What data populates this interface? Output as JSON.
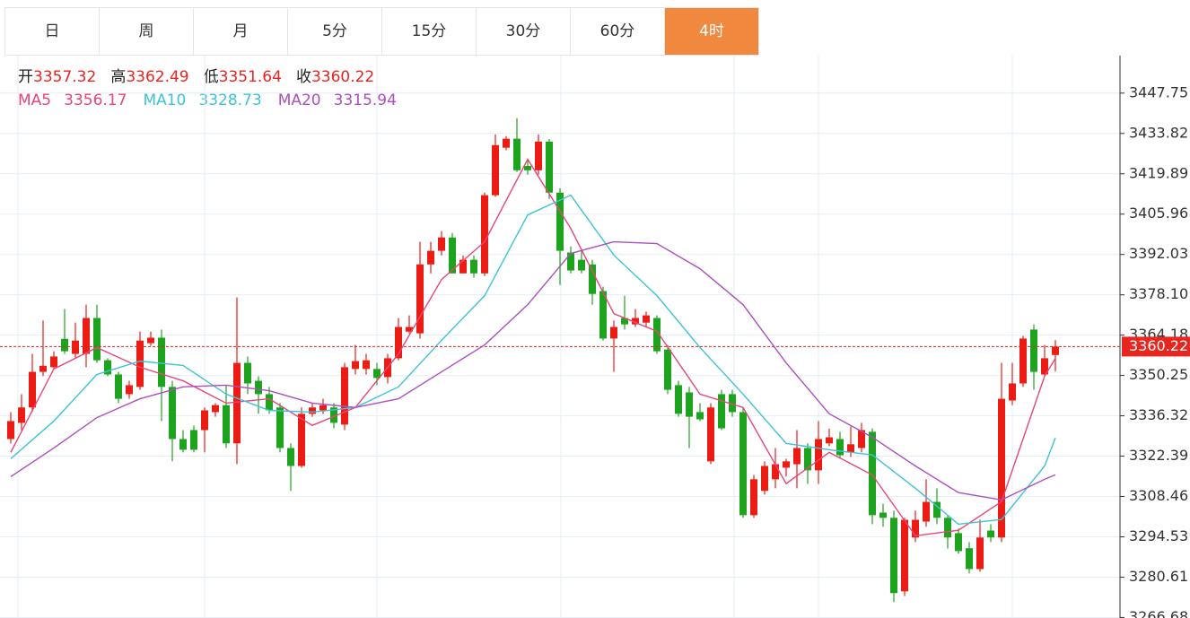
{
  "tabs": {
    "labels": [
      "日",
      "周",
      "月",
      "5分",
      "15分",
      "30分",
      "60分",
      "4时"
    ],
    "active": 7
  },
  "chart_data": {
    "type": "candlestick",
    "ohlc_labels": [
      "开",
      "高",
      "低",
      "收"
    ],
    "ylim": [
      3266.5,
      3460.7
    ],
    "yticks": [
      3447.75,
      3433.82,
      3419.89,
      3405.96,
      3392.03,
      {
        "value": 3378.1,
        "label": "3378.10"
      },
      3364.18,
      3350.25,
      3336.32,
      3322.39,
      3308.46,
      3294.53,
      3280.61,
      3266.68
    ],
    "grid": true,
    "up_color": "#eb1c14",
    "down_color": "#1ea31e",
    "last_price_color": "#e8251f",
    "open": [
      3328.3,
      3333.9,
      3339.2,
      3351.5,
      3353.1,
      3362.9,
      3357.7,
      3357.7,
      3370.1,
      3355.5,
      3350.6,
      3343.8,
      3346.3,
      3361.4,
      3363.3,
      3346.3,
      3328.3,
      3331.4,
      3331.4,
      3337.6,
      3340.0,
      3326.8,
      3354.6,
      3348.4,
      3343.8,
      3339.2,
      3325.2,
      3319.0,
      3337.0,
      3338.2,
      3339.2,
      3333.3,
      3352.5,
      3352.5,
      3352.5,
      3349.7,
      3356.2,
      3365.4,
      3364.8,
      3388.6,
      3393.3,
      3397.9,
      3385.5,
      3390.2,
      3385.5,
      3412.5,
      3428.9,
      3432.0,
      3422.6,
      3421.1,
      3431.0,
      3413.4,
      3392.7,
      3390.2,
      3388.6,
      3379.4,
      3363.0,
      3370.1,
      3367.9,
      3368.5,
      3370.1,
      3359.2,
      3346.9,
      3344.4,
      3337.6,
      3320.6,
      3343.8,
      3343.8,
      3337.6,
      3302.0,
      3310.4,
      3314.4,
      3318.4,
      3319.6,
      3325.2,
      3317.5,
      3326.8,
      3328.3,
      3323.7,
      3325.2,
      3330.8,
      3302.9,
      3301.1,
      3275.7,
      3294.3,
      3299.8,
      3306.6,
      3301.1,
      3295.8,
      3290.6,
      3283.4,
      3296.7,
      3294.3,
      3341.6,
      3347.5,
      3366.1,
      3350.6,
      3357.32
    ],
    "high": [
      3337.6,
      3343.8,
      3357.7,
      3369.2,
      3358.6,
      3373.2,
      3368.5,
      3374.7,
      3374.7,
      3356.2,
      3351.5,
      3348.4,
      3365.4,
      3365.4,
      3366.1,
      3348.4,
      3331.4,
      3333.0,
      3339.2,
      3340.7,
      3346.9,
      3377.2,
      3356.8,
      3350.0,
      3346.3,
      3340.7,
      3326.8,
      3339.2,
      3340.7,
      3342.2,
      3340.7,
      3354.6,
      3360.8,
      3357.7,
      3354.6,
      3357.7,
      3370.1,
      3371.0,
      3396.4,
      3396.4,
      3400.1,
      3399.5,
      3391.7,
      3391.7,
      3413.4,
      3433.5,
      3432.9,
      3439.1,
      3424.9,
      3433.5,
      3431.9,
      3414.9,
      3394.8,
      3393.3,
      3390.2,
      3380.9,
      3369.2,
      3377.8,
      3373.2,
      3372.3,
      3371.0,
      3360.8,
      3348.4,
      3346.3,
      3340.7,
      3340.7,
      3345.3,
      3345.3,
      3339.2,
      3315.9,
      3320.6,
      3325.2,
      3321.5,
      3331.4,
      3326.8,
      3334.5,
      3331.9,
      3330.8,
      3332.6,
      3333.9,
      3332.0,
      3306.0,
      3303.6,
      3301.1,
      3303.6,
      3314.4,
      3311.3,
      3302.0,
      3297.4,
      3292.7,
      3300.4,
      3298.9,
      3354.6,
      3354.6,
      3363.9,
      3367.9,
      3360.8,
      3362.49
    ],
    "low": [
      3326.8,
      3331.4,
      3337.6,
      3350.0,
      3352.5,
      3357.7,
      3356.2,
      3353.1,
      3354.6,
      3350.0,
      3340.7,
      3342.2,
      3345.3,
      3360.5,
      3334.5,
      3320.6,
      3323.7,
      3323.7,
      3323.7,
      3336.0,
      3325.2,
      3319.6,
      3343.8,
      3337.0,
      3337.0,
      3323.7,
      3310.4,
      3318.4,
      3336.0,
      3337.0,
      3332.0,
      3331.4,
      3350.6,
      3350.6,
      3346.9,
      3347.5,
      3355.5,
      3364.8,
      3363.0,
      3385.5,
      3391.7,
      3385.5,
      3385.5,
      3384.0,
      3384.6,
      3411.9,
      3428.0,
      3420.5,
      3419.6,
      3419.6,
      3411.2,
      3381.5,
      3385.5,
      3385.5,
      3374.7,
      3362.3,
      3351.5,
      3366.1,
      3367.0,
      3367.0,
      3357.7,
      3343.8,
      3336.0,
      3325.2,
      3334.5,
      3319.6,
      3331.4,
      3336.0,
      3301.1,
      3301.1,
      3309.1,
      3311.3,
      3315.3,
      3311.3,
      3312.8,
      3312.8,
      3325.8,
      3321.5,
      3322.1,
      3323.7,
      3298.9,
      3298.0,
      3272.0,
      3274.1,
      3292.7,
      3298.0,
      3298.9,
      3290.5,
      3288.7,
      3281.9,
      3282.5,
      3292.7,
      3292.7,
      3340.0,
      3346.3,
      3345.3,
      3350.0,
      3351.64
    ],
    "close": [
      3334.5,
      3339.2,
      3351.5,
      3353.6,
      3356.8,
      3358.6,
      3362.3,
      3370.1,
      3355.5,
      3350.6,
      3342.2,
      3346.9,
      3362.3,
      3363.3,
      3346.3,
      3328.3,
      3324.6,
      3324.6,
      3338.2,
      3340.0,
      3326.8,
      3354.6,
      3347.5,
      3343.8,
      3338.2,
      3325.2,
      3319.0,
      3337.0,
      3339.2,
      3340.0,
      3333.9,
      3353.1,
      3355.2,
      3355.5,
      3349.4,
      3356.2,
      3367.0,
      3367.0,
      3388.6,
      3393.3,
      3397.9,
      3385.5,
      3390.2,
      3385.5,
      3412.5,
      3429.8,
      3432.0,
      3421.1,
      3421.1,
      3431.0,
      3413.4,
      3393.3,
      3386.5,
      3386.5,
      3378.4,
      3363.0,
      3367.0,
      3367.9,
      3370.1,
      3371.0,
      3358.6,
      3345.3,
      3337.0,
      3336.0,
      3335.1,
      3339.2,
      3332.0,
      3337.6,
      3302.0,
      3314.4,
      3319.0,
      3319.6,
      3320.6,
      3325.2,
      3317.5,
      3328.3,
      3328.9,
      3322.7,
      3326.5,
      3331.4,
      3302.0,
      3301.1,
      3275.1,
      3300.4,
      3300.4,
      3306.6,
      3301.1,
      3294.3,
      3289.6,
      3283.4,
      3294.3,
      3294.3,
      3342.2,
      3347.5,
      3363.0,
      3351.5,
      3356.2,
      3360.22
    ],
    "series": [
      {
        "name": "MA5",
        "color": "#e8457a",
        "x": [
          0,
          4,
          8,
          12,
          16,
          20,
          24,
          28,
          32,
          36,
          40,
          44,
          48,
          52,
          56,
          60,
          64,
          68,
          72,
          76,
          80,
          84,
          88,
          92,
          96,
          97
        ],
        "values": [
          3323.7,
          3352.5,
          3359.9,
          3353.1,
          3348.4,
          3340.7,
          3342.2,
          3333.0,
          3339.2,
          3357.7,
          3383.4,
          3396.4,
          3424.9,
          3401.0,
          3371.6,
          3365.5,
          3343.8,
          3339.2,
          3312.9,
          3323.7,
          3315.9,
          3294.9,
          3296.8,
          3306.7,
          3350.0,
          3356.17
        ]
      },
      {
        "name": "MA10",
        "color": "#3cc3d6",
        "x": [
          0,
          4,
          8,
          12,
          16,
          20,
          24,
          28,
          32,
          36,
          40,
          44,
          48,
          52,
          56,
          60,
          64,
          68,
          72,
          76,
          80,
          84,
          88,
          92,
          96,
          97
        ],
        "values": [
          3321.5,
          3334.5,
          3350.6,
          3355.2,
          3353.7,
          3343.8,
          3338.2,
          3337.6,
          3339.2,
          3346.3,
          3362.4,
          3377.8,
          3405.7,
          3412.5,
          3391.8,
          3377.8,
          3359.9,
          3343.8,
          3326.8,
          3324.6,
          3322.8,
          3311.3,
          3298.9,
          3300.5,
          3319.0,
          3328.73
        ]
      },
      {
        "name": "MA20",
        "color": "#ad4fbf",
        "x": [
          0,
          4,
          8,
          12,
          16,
          20,
          24,
          28,
          32,
          36,
          40,
          44,
          48,
          52,
          56,
          60,
          64,
          68,
          72,
          76,
          80,
          84,
          88,
          92,
          96,
          97
        ],
        "values": [
          3315.3,
          3325.2,
          3335.7,
          3342.2,
          3346.3,
          3346.9,
          3345.0,
          3340.7,
          3339.2,
          3342.2,
          3351.5,
          3360.8,
          3374.7,
          3392.4,
          3396.4,
          3395.8,
          3387.1,
          3374.7,
          3354.6,
          3337.0,
          3328.9,
          3319.0,
          3309.8,
          3307.3,
          3314.4,
          3315.94
        ]
      }
    ]
  }
}
